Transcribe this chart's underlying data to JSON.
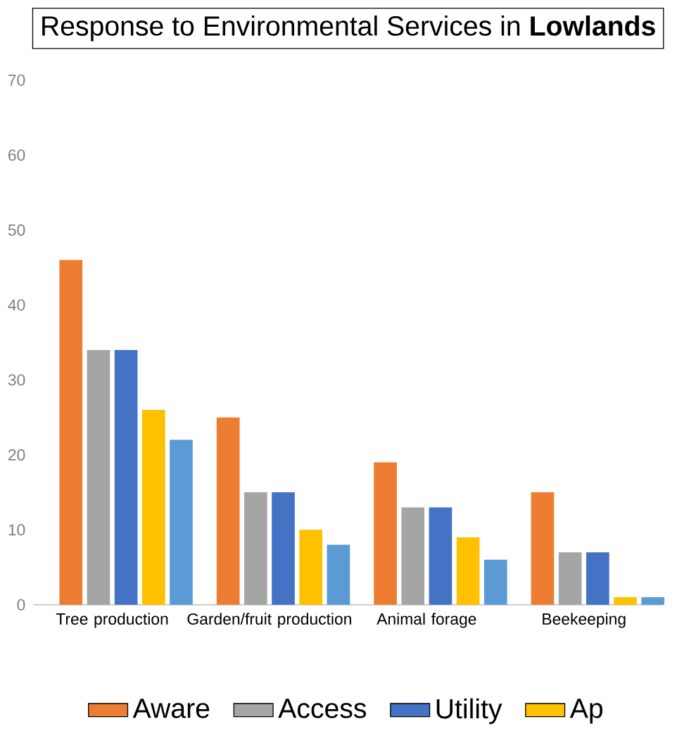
{
  "chart_data": {
    "type": "bar",
    "title": "Response to Environmental Services in **Lowlands**",
    "categories": [
      "Tree production",
      "Garden/fruit production",
      "Animal forage",
      "Beekeeping"
    ],
    "series": [
      {
        "name": "Aware",
        "color": "#ed7d31",
        "values": [
          46,
          25,
          19,
          15
        ]
      },
      {
        "name": "Access",
        "color": "#a5a5a5",
        "values": [
          34,
          15,
          13,
          7
        ]
      },
      {
        "name": "Utility",
        "color": "#4472c4",
        "values": [
          34,
          15,
          13,
          7
        ]
      },
      {
        "name": "Ap",
        "color": "#ffc000",
        "values": [
          26,
          10,
          9,
          1
        ]
      },
      {
        "color": "#5b9bd5",
        "values": [
          22,
          8,
          6,
          1
        ]
      }
    ],
    "ylim": [
      0,
      70
    ],
    "yticks": [
      0,
      10,
      20,
      30,
      40,
      50,
      60,
      70
    ],
    "legend": "bottom"
  }
}
